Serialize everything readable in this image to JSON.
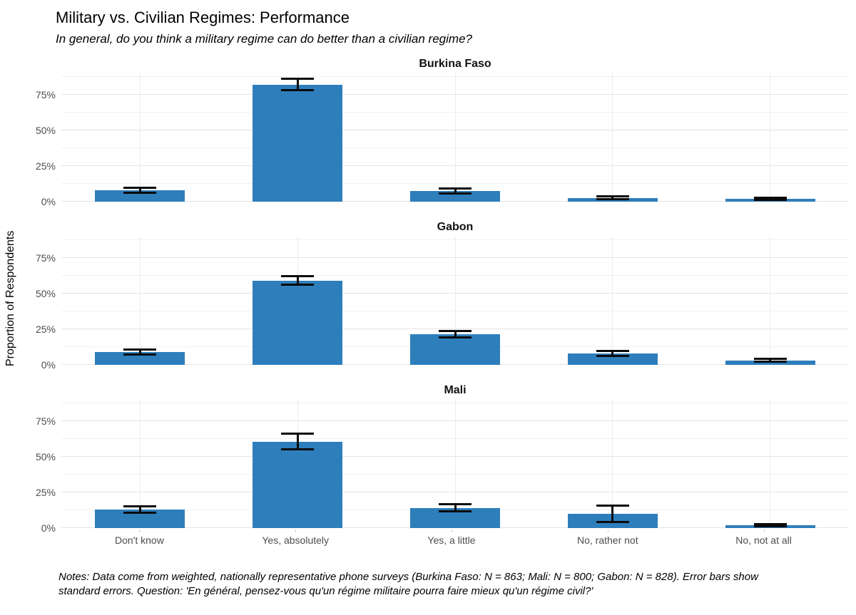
{
  "header": {
    "title": "Military vs. Civilian Regimes: Performance",
    "subtitle": "In general, do you think a military regime can do better than a civilian regime?"
  },
  "chart_data": {
    "type": "bar",
    "faceted": true,
    "facet_layout": "rows",
    "title": "Military vs. Civilian Regimes: Performance",
    "subtitle": "In general, do you think a military regime can do better than a civilian regime?",
    "xlabel": "",
    "ylabel": "Proportion of Respondents",
    "categories": [
      "Don't know",
      "Yes, absolutely",
      "Yes, a little",
      "No, rather not",
      "No, not at all"
    ],
    "ylim": [
      0,
      90
    ],
    "y_ticks": [
      {
        "value": 0,
        "label": "0%"
      },
      {
        "value": 25,
        "label": "25%"
      },
      {
        "value": 50,
        "label": "50%"
      },
      {
        "value": 75,
        "label": "75%"
      }
    ],
    "grid": {
      "major": [
        0,
        25,
        50,
        75
      ],
      "minor": [
        12.5,
        37.5,
        62.5,
        87.5
      ],
      "vertical_at_category_centers": true
    },
    "legend": "none",
    "bar_color": "#2E7EBC",
    "error_bar_color": "#0b0b0b",
    "error_bars": "standard errors",
    "facets": [
      {
        "label": "Burkina Faso",
        "n": 863,
        "values": [
          7.7,
          82.0,
          7.2,
          2.6,
          1.9
        ],
        "se": [
          1.7,
          4.0,
          1.7,
          1.0,
          0.8
        ]
      },
      {
        "label": "Gabon",
        "n": 828,
        "values": [
          8.7,
          59.0,
          21.5,
          7.8,
          2.9
        ],
        "se": [
          1.7,
          3.0,
          2.2,
          1.8,
          1.0
        ]
      },
      {
        "label": "Mali",
        "n": 800,
        "values": [
          13.0,
          60.5,
          14.0,
          9.7,
          1.9
        ],
        "se": [
          2.2,
          5.5,
          2.4,
          5.8,
          0.8
        ]
      }
    ]
  },
  "caption": {
    "text": "Notes: Data come from weighted, nationally representative phone surveys (Burkina Faso: N = 863; Mali: N = 800; Gabon: N = 828). Error bars show standard errors. Question: 'En général, pensez-vous qu'un régime militaire pourra faire mieux qu'un régime civil?'"
  }
}
